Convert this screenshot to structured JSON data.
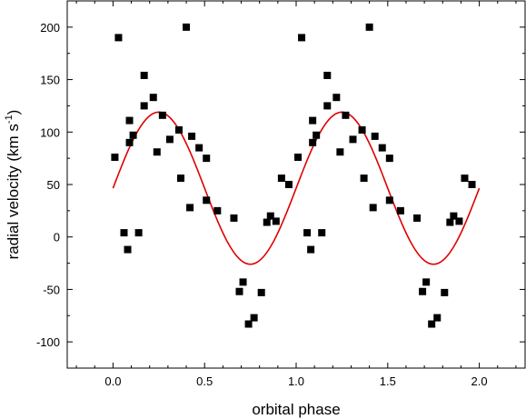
{
  "chart_data": {
    "type": "scatter",
    "title": "",
    "xlabel": "orbital phase",
    "ylabel_parts": {
      "prefix": "radial velocity (km s",
      "exponent": "-1",
      "suffix": ")"
    },
    "xlim": [
      -0.25,
      2.25
    ],
    "ylim": [
      -125,
      225
    ],
    "xticks": [
      0.0,
      0.5,
      1.0,
      1.5,
      2.0
    ],
    "xtick_labels": [
      "0.0",
      "0.5",
      "1.0",
      "1.5",
      "2.0"
    ],
    "yticks": [
      -100,
      -50,
      0,
      50,
      100,
      150,
      200
    ],
    "ytick_labels": [
      "-100",
      "-50",
      "0",
      "50",
      "100",
      "150",
      "200"
    ],
    "grid": false,
    "legend": "none",
    "series": [
      {
        "type": "scatter",
        "marker": "square",
        "color": "#000000",
        "points": [
          [
            0.01,
            76
          ],
          [
            0.03,
            190
          ],
          [
            0.06,
            4
          ],
          [
            0.08,
            -12
          ],
          [
            0.09,
            111
          ],
          [
            0.09,
            90
          ],
          [
            0.11,
            97
          ],
          [
            0.14,
            4
          ],
          [
            0.17,
            154
          ],
          [
            0.17,
            125
          ],
          [
            0.22,
            133
          ],
          [
            0.24,
            81
          ],
          [
            0.27,
            116
          ],
          [
            0.31,
            93
          ],
          [
            0.36,
            102
          ],
          [
            0.37,
            56
          ],
          [
            0.4,
            200
          ],
          [
            0.42,
            28
          ],
          [
            0.43,
            96
          ],
          [
            0.47,
            85
          ],
          [
            0.51,
            75
          ],
          [
            0.51,
            35
          ],
          [
            0.57,
            25
          ],
          [
            0.66,
            18
          ],
          [
            0.69,
            -52
          ],
          [
            0.71,
            -43
          ],
          [
            0.74,
            -83
          ],
          [
            0.77,
            -77
          ],
          [
            0.81,
            -53
          ],
          [
            0.84,
            14
          ],
          [
            0.86,
            20
          ],
          [
            0.89,
            15
          ],
          [
            0.92,
            56
          ],
          [
            0.96,
            50
          ],
          [
            1.01,
            76
          ],
          [
            1.03,
            190
          ],
          [
            1.06,
            4
          ],
          [
            1.08,
            -12
          ],
          [
            1.09,
            111
          ],
          [
            1.09,
            90
          ],
          [
            1.11,
            97
          ],
          [
            1.14,
            4
          ],
          [
            1.17,
            154
          ],
          [
            1.17,
            125
          ],
          [
            1.22,
            133
          ],
          [
            1.24,
            81
          ],
          [
            1.27,
            116
          ],
          [
            1.31,
            93
          ],
          [
            1.36,
            102
          ],
          [
            1.37,
            56
          ],
          [
            1.4,
            200
          ],
          [
            1.42,
            28
          ],
          [
            1.43,
            96
          ],
          [
            1.47,
            85
          ],
          [
            1.51,
            75
          ],
          [
            1.51,
            35
          ],
          [
            1.57,
            25
          ],
          [
            1.66,
            18
          ],
          [
            1.69,
            -52
          ],
          [
            1.71,
            -43
          ],
          [
            1.74,
            -83
          ],
          [
            1.77,
            -77
          ],
          [
            1.81,
            -53
          ],
          [
            1.84,
            14
          ],
          [
            1.86,
            20
          ],
          [
            1.89,
            15
          ],
          [
            1.92,
            56
          ],
          [
            1.96,
            50
          ]
        ]
      },
      {
        "type": "line",
        "color": "#e00000",
        "fit": {
          "gamma": 46.5,
          "K": 72.5,
          "phase_of_max": 0.25
        },
        "x_range": [
          0.0,
          2.0
        ]
      }
    ]
  }
}
